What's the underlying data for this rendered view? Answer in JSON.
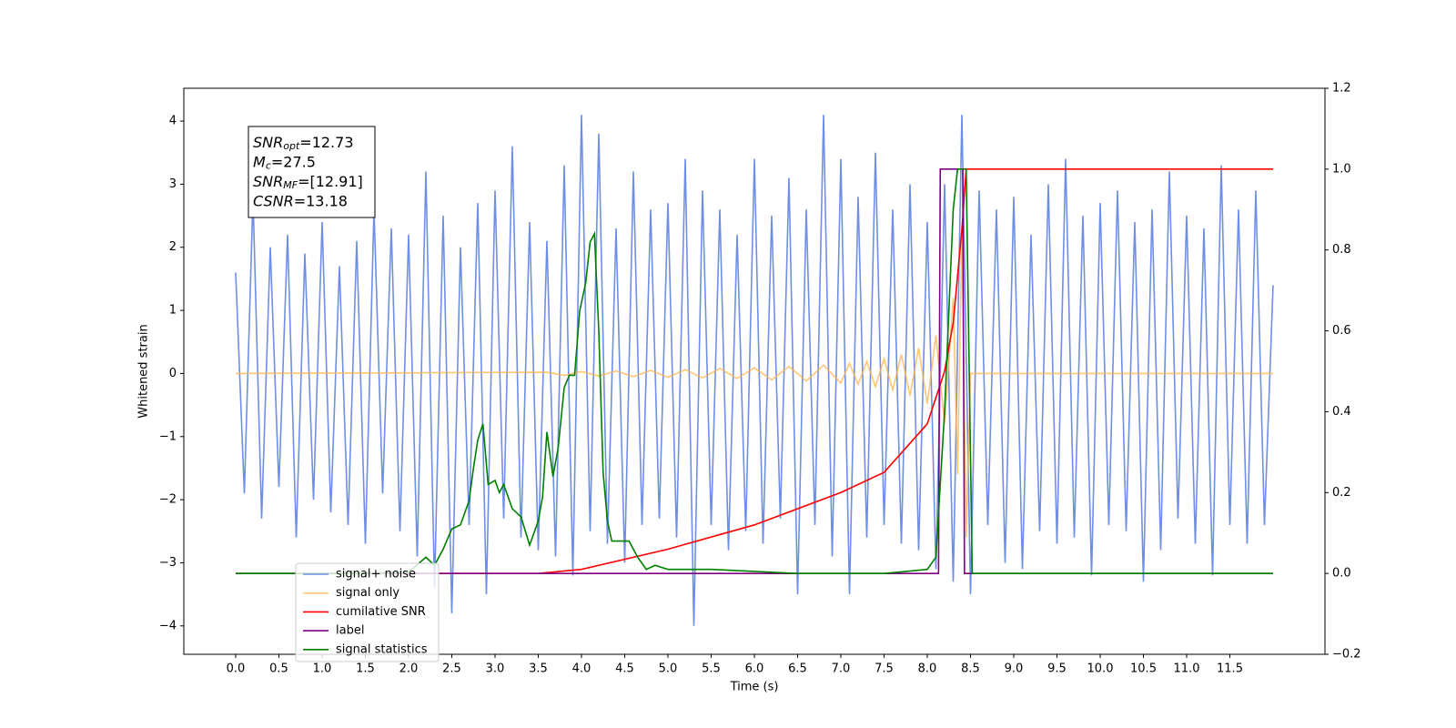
{
  "chart_data": {
    "type": "line",
    "xlabel": "Time (s)",
    "ylabel": "Whitened strain",
    "xlim": [
      -0.6,
      12.6
    ],
    "ylim": [
      -4.45,
      4.52
    ],
    "y2lim": [
      -0.2,
      1.2
    ],
    "xticks": [
      {
        "value": 0,
        "label": "0.0"
      },
      0.5,
      {
        "value": 1,
        "label": "1.0"
      },
      1.5,
      {
        "value": 2,
        "label": "2.0"
      },
      2.5,
      {
        "value": 3,
        "label": "3.0"
      },
      3.5,
      {
        "value": 4,
        "label": "4.0"
      },
      4.5,
      {
        "value": 5,
        "label": "5.0"
      },
      5.5,
      {
        "value": 6,
        "label": "6.0"
      },
      6.5,
      {
        "value": 7,
        "label": "7.0"
      },
      7.5,
      {
        "value": 8,
        "label": "8.0"
      },
      8.5,
      {
        "value": 9,
        "label": "9.0"
      },
      9.5,
      {
        "value": 10,
        "label": "10.0"
      },
      10.5,
      {
        "value": 11,
        "label": "11.0"
      },
      11.5
    ],
    "yticks": [
      {
        "value": -4,
        "label": "−4"
      },
      {
        "value": -3,
        "label": "−3"
      },
      {
        "value": -2,
        "label": "−2"
      },
      {
        "value": -1,
        "label": "−1"
      },
      0,
      1,
      2,
      3,
      4
    ],
    "y2ticks": [
      {
        "value": -0.2,
        "label": "−0.2"
      },
      {
        "value": 0,
        "label": "0.0"
      },
      0.2,
      0.4,
      0.6,
      0.8,
      {
        "value": 1,
        "label": "1.0"
      },
      1.2
    ],
    "legend": "lower left",
    "annotation": [
      {
        "base": "SNR",
        "sub": "opt",
        "text": "=12.73"
      },
      {
        "base": "M",
        "sub": "c",
        "text": "=27.5"
      },
      {
        "base": "SNR",
        "sub": "MF",
        "text": "=[12.91]"
      },
      {
        "base": "CSNR",
        "text": "=13.18"
      }
    ],
    "series": [
      {
        "name": "signal+ noise",
        "color": "#6f8ee6",
        "axis": "y",
        "x": [
          0,
          0.1,
          0.2,
          0.3,
          0.4,
          0.5,
          0.6,
          0.7,
          0.8,
          0.9,
          1,
          1.1,
          1.2,
          1.3,
          1.4,
          1.5,
          1.6,
          1.7,
          1.8,
          1.9,
          2,
          2.1,
          2.2,
          2.3,
          2.4,
          2.5,
          2.6,
          2.7,
          2.8,
          2.9,
          3,
          3.1,
          3.2,
          3.3,
          3.4,
          3.5,
          3.6,
          3.7,
          3.8,
          3.9,
          4,
          4.1,
          4.2,
          4.3,
          4.4,
          4.5,
          4.6,
          4.7,
          4.8,
          4.9,
          5,
          5.1,
          5.2,
          5.3,
          5.4,
          5.5,
          5.6,
          5.7,
          5.8,
          5.9,
          6,
          6.1,
          6.2,
          6.3,
          6.4,
          6.5,
          6.6,
          6.7,
          6.8,
          6.9,
          7,
          7.1,
          7.2,
          7.3,
          7.4,
          7.5,
          7.6,
          7.7,
          7.8,
          7.9,
          8,
          8.1,
          8.2,
          8.3,
          8.4,
          8.5,
          8.6,
          8.7,
          8.8,
          8.9,
          9,
          9.1,
          9.2,
          9.3,
          9.4,
          9.5,
          9.6,
          9.7,
          9.8,
          9.9,
          10,
          10.1,
          10.2,
          10.3,
          10.4,
          10.5,
          10.6,
          10.7,
          10.8,
          10.9,
          11,
          11.1,
          11.2,
          11.3,
          11.4,
          11.5,
          11.6,
          11.7,
          11.8,
          11.9,
          12
        ],
        "values": [
          1.6,
          -1.9,
          2.8,
          -2.3,
          2.0,
          -1.8,
          2.2,
          -2.6,
          1.9,
          -2.0,
          2.4,
          -2.2,
          1.7,
          -2.4,
          2.1,
          -2.7,
          2.6,
          -1.9,
          2.3,
          -2.5,
          2.2,
          -2.9,
          3.2,
          -3.4,
          2.5,
          -3.8,
          2.0,
          -2.4,
          2.7,
          -3.5,
          2.9,
          -2.3,
          3.6,
          -2.6,
          2.4,
          -2.8,
          2.1,
          -2.9,
          3.3,
          -3.2,
          4.1,
          -2.5,
          3.8,
          -2.7,
          2.3,
          -3.0,
          3.2,
          -2.4,
          2.6,
          -2.3,
          2.7,
          -2.6,
          3.4,
          -4.0,
          2.9,
          -2.4,
          2.6,
          -2.8,
          2.2,
          -2.5,
          3.4,
          -2.7,
          2.5,
          -2.3,
          3.1,
          -3.5,
          2.6,
          -2.4,
          4.1,
          -2.9,
          3.4,
          -3.5,
          2.8,
          -2.6,
          3.5,
          -2.4,
          2.6,
          -2.7,
          3.0,
          -2.8,
          2.4,
          -3.1,
          3.0,
          -3.3,
          4.1,
          -3.5,
          2.9,
          -2.4,
          2.6,
          -3.0,
          2.8,
          -3.1,
          2.2,
          -2.5,
          3.0,
          -2.7,
          3.4,
          -2.6,
          2.5,
          -3.2,
          2.7,
          -2.4,
          2.9,
          -2.5,
          2.4,
          -3.3,
          2.6,
          -2.8,
          3.2,
          -2.3,
          2.5,
          -2.7,
          2.3,
          -3.2,
          3.3,
          -2.4,
          2.6,
          -2.7,
          2.9,
          -2.4,
          1.4
        ]
      },
      {
        "name": "signal only",
        "color": "#ffb347",
        "axis": "y",
        "x": [
          0,
          3.6,
          3.8,
          4.0,
          4.2,
          4.4,
          4.6,
          4.8,
          5.0,
          5.2,
          5.4,
          5.6,
          5.8,
          6.0,
          6.2,
          6.4,
          6.6,
          6.8,
          7.0,
          7.1,
          7.2,
          7.3,
          7.4,
          7.5,
          7.6,
          7.7,
          7.8,
          7.9,
          8.0,
          8.1,
          8.2,
          8.3,
          8.35,
          8.4,
          8.45,
          8.5,
          12
        ],
        "values": [
          0,
          0.02,
          -0.03,
          0.03,
          -0.04,
          0.04,
          -0.05,
          0.05,
          -0.06,
          0.06,
          -0.07,
          0.08,
          -0.08,
          0.09,
          -0.1,
          0.11,
          -0.12,
          0.13,
          -0.15,
          0.16,
          -0.17,
          0.19,
          -0.21,
          0.23,
          -0.26,
          0.3,
          -0.35,
          0.4,
          -0.48,
          0.6,
          -0.8,
          1.2,
          -1.6,
          2.2,
          -2.6,
          0,
          0
        ]
      },
      {
        "name": "cumilative SNR",
        "color": "#ff0000",
        "axis": "y2",
        "x": [
          0,
          3.5,
          4.0,
          5.0,
          6.0,
          7.0,
          7.5,
          8.0,
          8.2,
          8.3,
          8.4,
          8.45,
          12
        ],
        "values": [
          0,
          0,
          0.01,
          0.06,
          0.12,
          0.2,
          0.25,
          0.37,
          0.5,
          0.62,
          0.85,
          1.0,
          1.0
        ]
      },
      {
        "name": "label",
        "color": "#800080",
        "axis": "y2",
        "x": [
          0,
          8.13,
          8.15,
          8.41,
          8.43,
          12
        ],
        "values": [
          0,
          0,
          1,
          1,
          0,
          0
        ]
      },
      {
        "name": "signal statistics",
        "color": "#008000",
        "axis": "y2",
        "x": [
          0,
          1.5,
          2.0,
          2.2,
          2.3,
          2.4,
          2.5,
          2.6,
          2.7,
          2.75,
          2.8,
          2.86,
          2.92,
          3.0,
          3.05,
          3.1,
          3.2,
          3.3,
          3.4,
          3.5,
          3.55,
          3.6,
          3.67,
          3.73,
          3.8,
          3.86,
          3.92,
          3.98,
          4.05,
          4.1,
          4.15,
          4.2,
          4.25,
          4.3,
          4.35,
          4.45,
          4.55,
          4.65,
          4.75,
          4.85,
          5.0,
          5.5,
          6.0,
          6.5,
          7.0,
          7.5,
          8.0,
          8.1,
          8.2,
          8.3,
          8.35,
          8.45,
          8.52,
          9,
          12
        ],
        "values": [
          0,
          0,
          0.003,
          0.04,
          0.02,
          0.06,
          0.11,
          0.12,
          0.18,
          0.26,
          0.33,
          0.37,
          0.22,
          0.23,
          0.2,
          0.22,
          0.16,
          0.14,
          0.07,
          0.13,
          0.19,
          0.35,
          0.24,
          0.31,
          0.46,
          0.49,
          0.49,
          0.65,
          0.72,
          0.82,
          0.84,
          0.6,
          0.25,
          0.13,
          0.08,
          0.08,
          0.08,
          0.04,
          0.01,
          0.02,
          0.01,
          0.01,
          0.005,
          0,
          0,
          0,
          0.01,
          0.04,
          0.4,
          0.9,
          1.0,
          1.0,
          0,
          0,
          0
        ]
      }
    ]
  }
}
